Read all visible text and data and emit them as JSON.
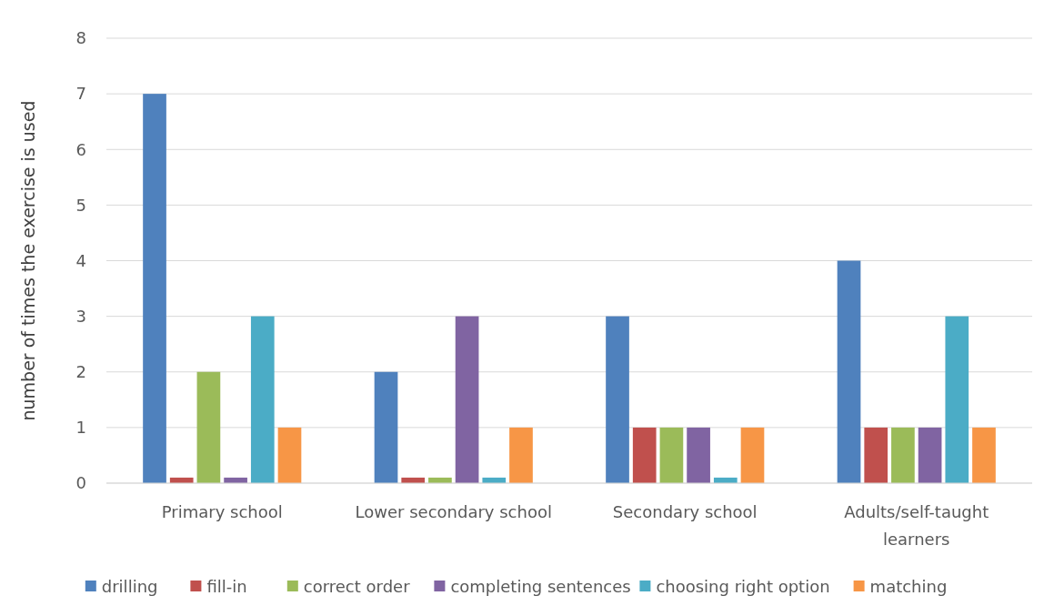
{
  "chart_data": {
    "type": "bar",
    "ylabel": "number of times the exercise is used",
    "categories": [
      "Primary school",
      "Lower secondary school",
      "Secondary school",
      "Adults/self-taught learners"
    ],
    "series": [
      {
        "name": "drilling",
        "color": "#4f81bd",
        "values": [
          7,
          2,
          3,
          4
        ]
      },
      {
        "name": "fill-in",
        "color": "#c0504d",
        "values": [
          0.1,
          0.1,
          1,
          1
        ]
      },
      {
        "name": "correct order",
        "color": "#9bbb59",
        "values": [
          2,
          0.1,
          1,
          1
        ]
      },
      {
        "name": "completing sentences",
        "color": "#8064a2",
        "values": [
          0.1,
          3,
          1,
          1
        ]
      },
      {
        "name": "choosing right option",
        "color": "#4bacc6",
        "values": [
          3,
          0.1,
          0.1,
          3
        ]
      },
      {
        "name": "matching",
        "color": "#f79646",
        "values": [
          1,
          1,
          1,
          1
        ]
      }
    ],
    "ylim": [
      0,
      8
    ],
    "yticks": [
      0,
      1,
      2,
      3,
      4,
      5,
      6,
      7,
      8
    ],
    "grid": "y",
    "legend": "bottom"
  }
}
